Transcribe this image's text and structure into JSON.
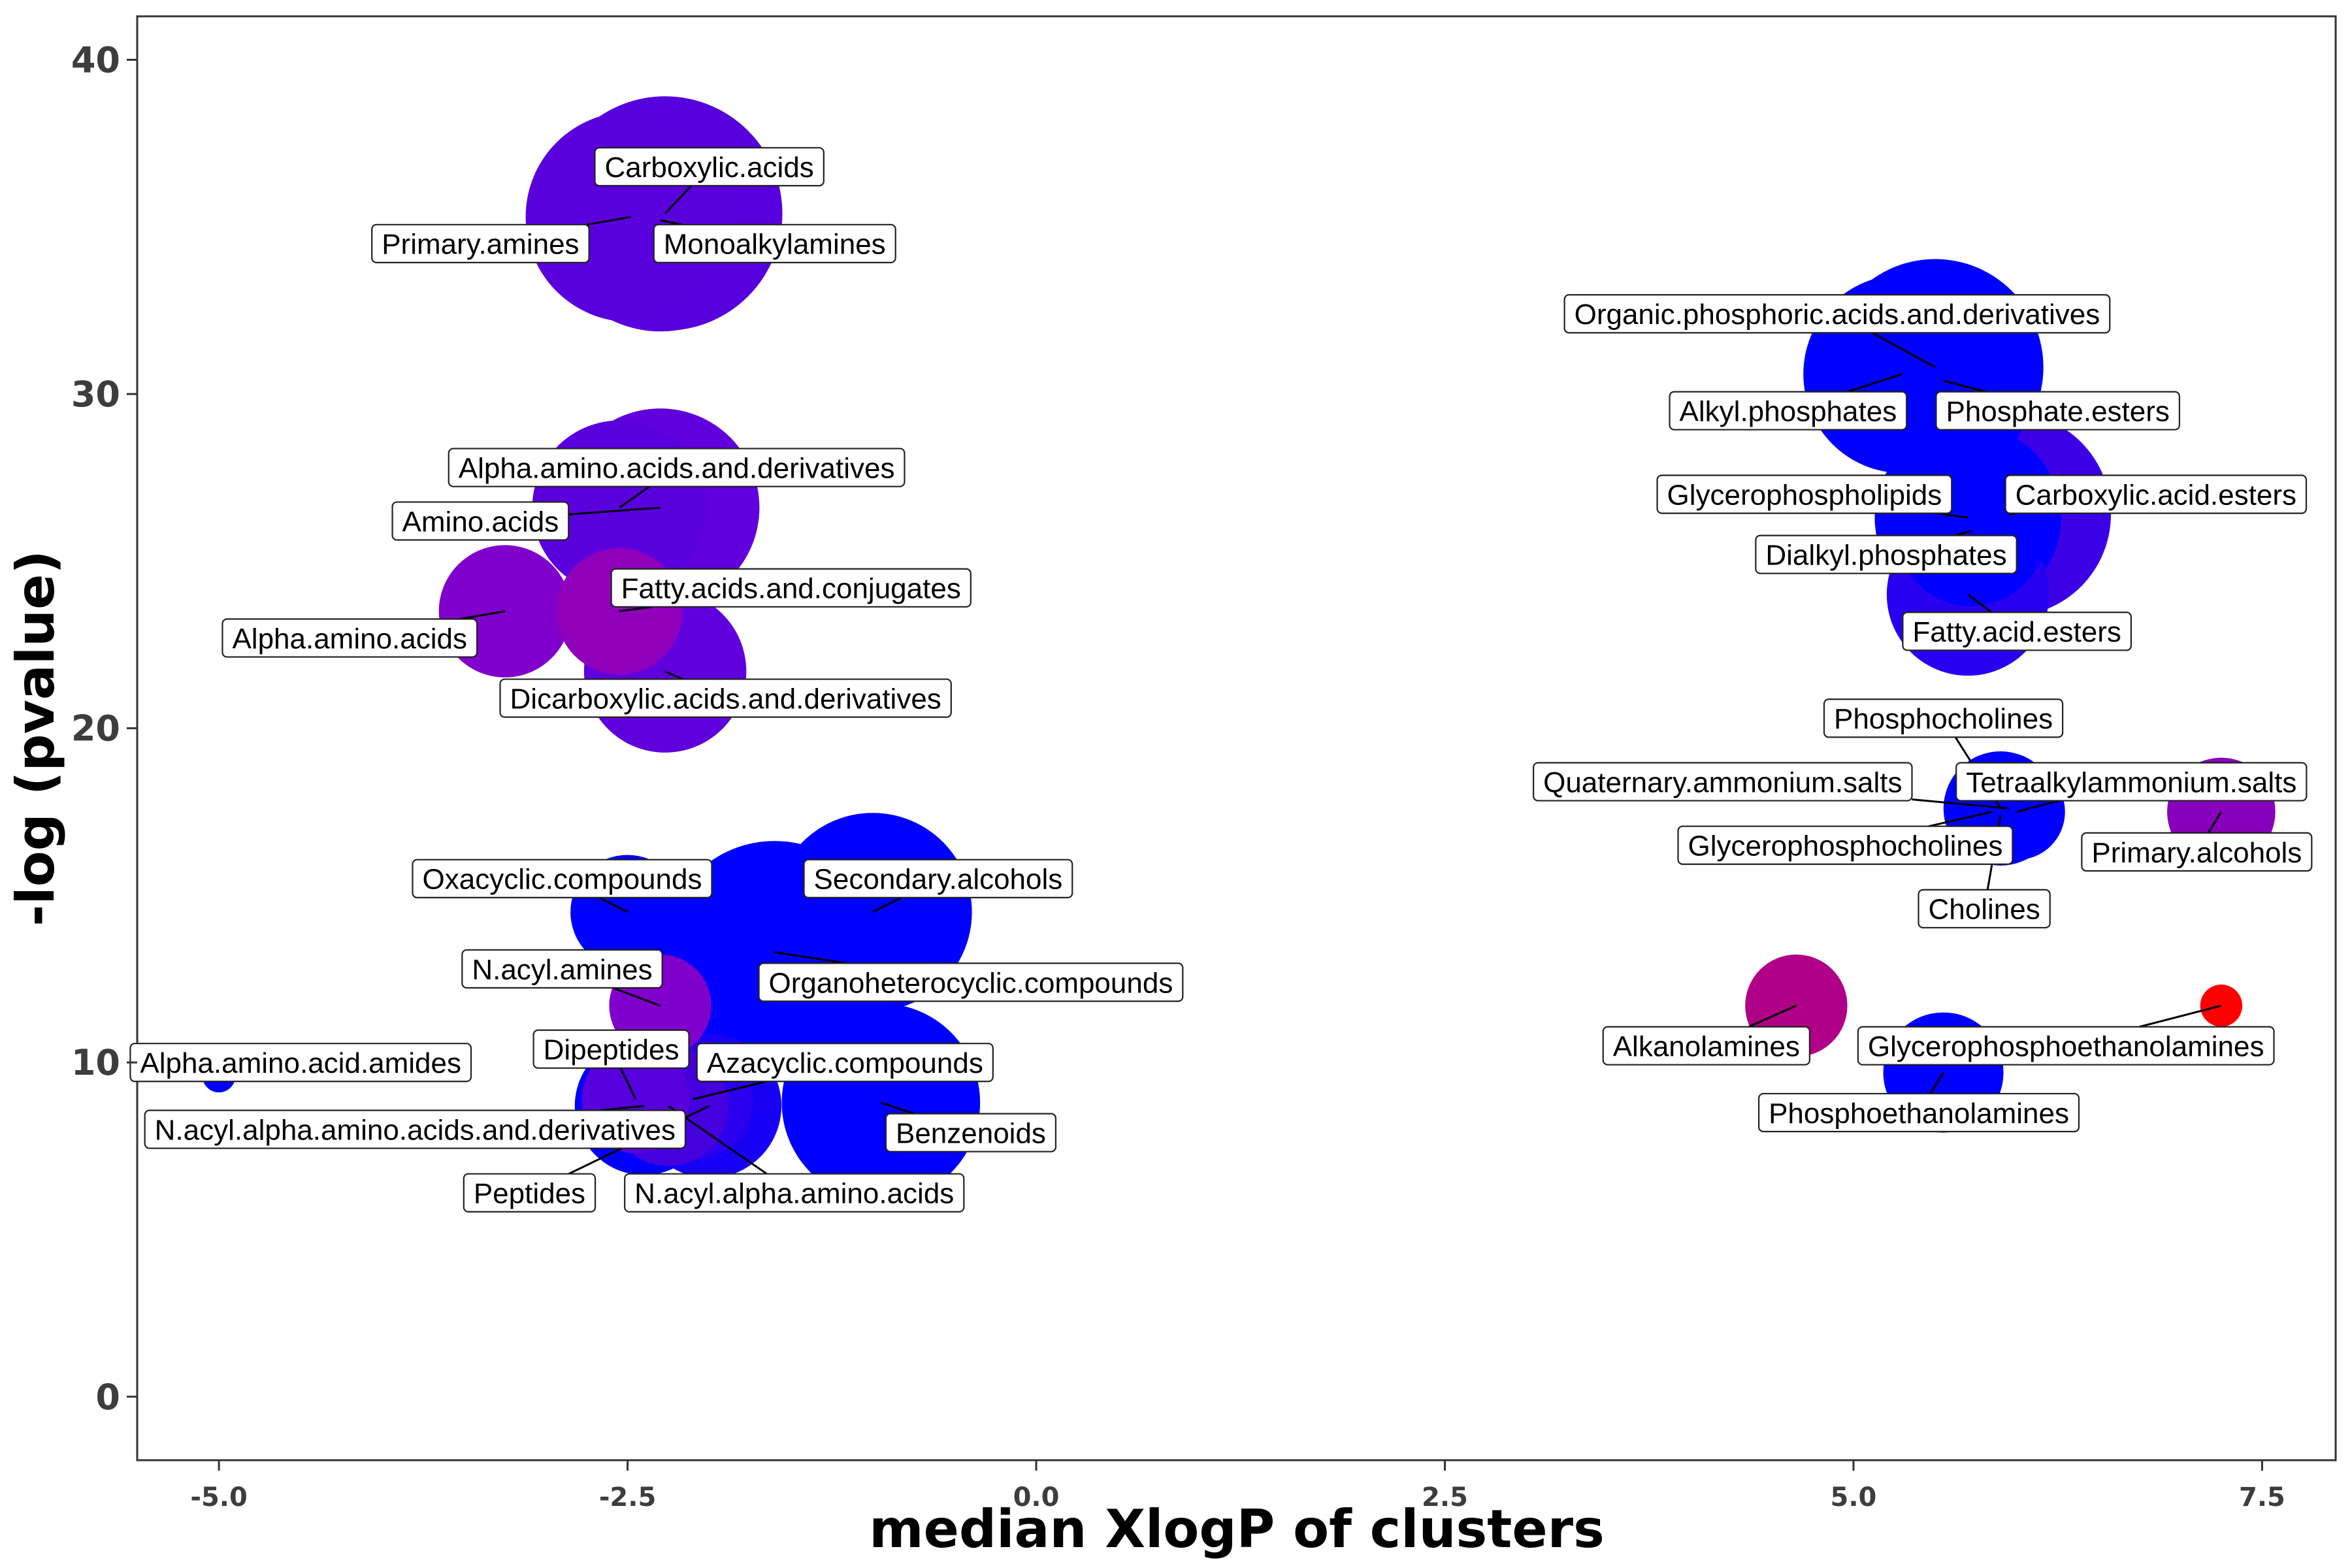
{
  "chart_data": {
    "type": "scatter",
    "xlabel": "median XlogP of clusters",
    "ylabel": "-log (pvalue)",
    "xlim": [
      -5.5,
      7.95
    ],
    "ylim": [
      -1.9,
      41.3
    ],
    "x_ticks": [
      {
        "v": -5.0,
        "label": "-5.0"
      },
      {
        "v": -2.5,
        "label": "-2.5"
      },
      {
        "v": 0.0,
        "label": "0.0"
      },
      {
        "v": 2.5,
        "label": "2.5"
      },
      {
        "v": 5.0,
        "label": "5.0"
      },
      {
        "v": 7.5,
        "label": "7.5"
      }
    ],
    "y_ticks": [
      {
        "v": 0,
        "label": "0"
      },
      {
        "v": 10,
        "label": "10"
      },
      {
        "v": 20,
        "label": "20"
      },
      {
        "v": 30,
        "label": "30"
      },
      {
        "v": 40,
        "label": "40"
      }
    ],
    "grid": false,
    "legend": "none",
    "points": [
      {
        "name": "Carboxylic.acids",
        "x": -2.27,
        "y": 35.4,
        "r": 78,
        "color": "#5500dd",
        "lx": -2.0,
        "ly": 36.8
      },
      {
        "name": "Primary.amines",
        "x": -2.48,
        "y": 35.3,
        "r": 70,
        "color": "#5a00dd",
        "lx": -3.4,
        "ly": 34.5
      },
      {
        "name": "Monoalkylamines",
        "x": -2.3,
        "y": 35.2,
        "r": 74,
        "color": "#5800dd",
        "lx": -1.6,
        "ly": 34.5
      },
      {
        "name": "Alpha.amino.acids.and.derivatives",
        "x": -2.55,
        "y": 26.6,
        "r": 58,
        "color": "#5a00dd",
        "lx": -2.2,
        "ly": 27.8
      },
      {
        "name": "Amino.acids",
        "x": -2.3,
        "y": 26.6,
        "r": 66,
        "color": "#6000dd",
        "lx": -3.4,
        "ly": 26.2
      },
      {
        "name": "Alpha.amino.acids",
        "x": -3.25,
        "y": 23.5,
        "r": 44,
        "color": "#8000cc",
        "lx": -4.2,
        "ly": 22.7
      },
      {
        "name": "Fatty.acids.and.conjugates",
        "x": -2.55,
        "y": 23.5,
        "r": 42,
        "color": "#9000bb",
        "lx": -1.5,
        "ly": 24.2
      },
      {
        "name": "Dicarboxylic.acids.and.derivatives",
        "x": -2.27,
        "y": 21.7,
        "r": 54,
        "color": "#6000dd",
        "lx": -1.9,
        "ly": 20.9
      },
      {
        "name": "Oxacyclic.compounds",
        "x": -2.5,
        "y": 14.5,
        "r": 38,
        "color": "#0000ff",
        "lx": -2.9,
        "ly": 15.5
      },
      {
        "name": "Secondary.alcohols",
        "x": -1.0,
        "y": 14.5,
        "r": 66,
        "color": "#0000ff",
        "lx": -0.6,
        "ly": 15.5
      },
      {
        "name": "Organoheterocyclic.compounds",
        "x": -1.6,
        "y": 13.3,
        "r": 74,
        "color": "#0000ff",
        "lx": -0.4,
        "ly": 12.4
      },
      {
        "name": "N.acyl.amines",
        "x": -2.3,
        "y": 11.7,
        "r": 34,
        "color": "#8000cc",
        "lx": -2.9,
        "ly": 12.8
      },
      {
        "name": "Dipeptides",
        "x": -2.45,
        "y": 8.9,
        "r": 36,
        "color": "#5500dd",
        "lx": -2.6,
        "ly": 10.4
      },
      {
        "name": "Azacyclic.compounds",
        "x": -2.1,
        "y": 8.9,
        "r": 40,
        "color": "#2a00ee",
        "lx": -1.17,
        "ly": 10.0
      },
      {
        "name": "Alpha.amino.acid.amides",
        "x": -5.0,
        "y": 9.6,
        "r": 11,
        "color": "#0000ff",
        "lx": -4.5,
        "ly": 10.0
      },
      {
        "name": "N.acyl.alpha.amino.acids.and.derivatives",
        "x": -2.4,
        "y": 8.7,
        "r": 46,
        "color": "#0000ff",
        "lx": -3.8,
        "ly": 8.0
      },
      {
        "name": "Benzenoids",
        "x": -0.95,
        "y": 8.8,
        "r": 66,
        "color": "#0000ff",
        "lx": -0.4,
        "ly": 7.9
      },
      {
        "name": "Peptides",
        "x": -2.0,
        "y": 8.7,
        "r": 48,
        "color": "#1800f5",
        "lx": -3.1,
        "ly": 6.1
      },
      {
        "name": "N.acyl.alpha.amino.acids",
        "x": -2.25,
        "y": 8.7,
        "r": 40,
        "color": "#4400dd",
        "lx": -1.48,
        "ly": 6.1
      },
      {
        "name": "Organic.phosphoric.acids.and.derivatives",
        "x": 5.5,
        "y": 30.8,
        "r": 72,
        "color": "#0000ff",
        "lx": 4.9,
        "ly": 32.4
      },
      {
        "name": "Alkyl.phosphates",
        "x": 5.3,
        "y": 30.6,
        "r": 66,
        "color": "#0000ff",
        "lx": 4.6,
        "ly": 29.5
      },
      {
        "name": "Phosphate.esters",
        "x": 5.55,
        "y": 30.4,
        "r": 62,
        "color": "#0000ff",
        "lx": 6.25,
        "ly": 29.5
      },
      {
        "name": "Glycerophospholipids",
        "x": 5.7,
        "y": 26.3,
        "r": 62,
        "color": "#0000ff",
        "lx": 4.7,
        "ly": 27.0
      },
      {
        "name": "Carboxylic.acid.esters",
        "x": 5.95,
        "y": 26.4,
        "r": 68,
        "color": "#3c00e6",
        "lx": 6.85,
        "ly": 27.0
      },
      {
        "name": "Dialkyl.phosphates",
        "x": 5.72,
        "y": 25.9,
        "r": 50,
        "color": "#0000ff",
        "lx": 5.2,
        "ly": 25.2
      },
      {
        "name": "Fatty.acid.esters",
        "x": 5.7,
        "y": 24.0,
        "r": 54,
        "color": "#2800f0",
        "lx": 6.0,
        "ly": 22.9
      },
      {
        "name": "Phosphocholines",
        "x": 5.9,
        "y": 17.6,
        "r": 38,
        "color": "#0000ff",
        "lx": 5.55,
        "ly": 20.3
      },
      {
        "name": "Quaternary.ammonium.salts",
        "x": 5.95,
        "y": 17.6,
        "r": 34,
        "color": "#0000ff",
        "lx": 4.2,
        "ly": 18.4
      },
      {
        "name": "Tetraalkylammonium.salts",
        "x": 6.0,
        "y": 17.5,
        "r": 32,
        "color": "#0000ff",
        "lx": 6.7,
        "ly": 18.4
      },
      {
        "name": "Glycerophosphocholines",
        "x": 5.85,
        "y": 17.5,
        "r": 30,
        "color": "#0000ff",
        "lx": 4.95,
        "ly": 16.5
      },
      {
        "name": "Cholines",
        "x": 5.9,
        "y": 17.4,
        "r": 28,
        "color": "#0000ff",
        "lx": 5.8,
        "ly": 14.6
      },
      {
        "name": "Primary.alcohols",
        "x": 7.25,
        "y": 17.5,
        "r": 36,
        "color": "#8800bb",
        "lx": 7.1,
        "ly": 16.3
      },
      {
        "name": "Alkanolamines",
        "x": 4.65,
        "y": 11.7,
        "r": 34,
        "color": "#b00088",
        "lx": 4.1,
        "ly": 10.5
      },
      {
        "name": "Glycerophosphoethanolamines",
        "x": 7.25,
        "y": 11.7,
        "r": 14,
        "color": "#ff0000",
        "lx": 6.3,
        "ly": 10.5
      },
      {
        "name": "Phosphoethanolamines",
        "x": 5.55,
        "y": 9.7,
        "r": 40,
        "color": "#0000ff",
        "lx": 5.4,
        "ly": 8.5
      }
    ]
  }
}
